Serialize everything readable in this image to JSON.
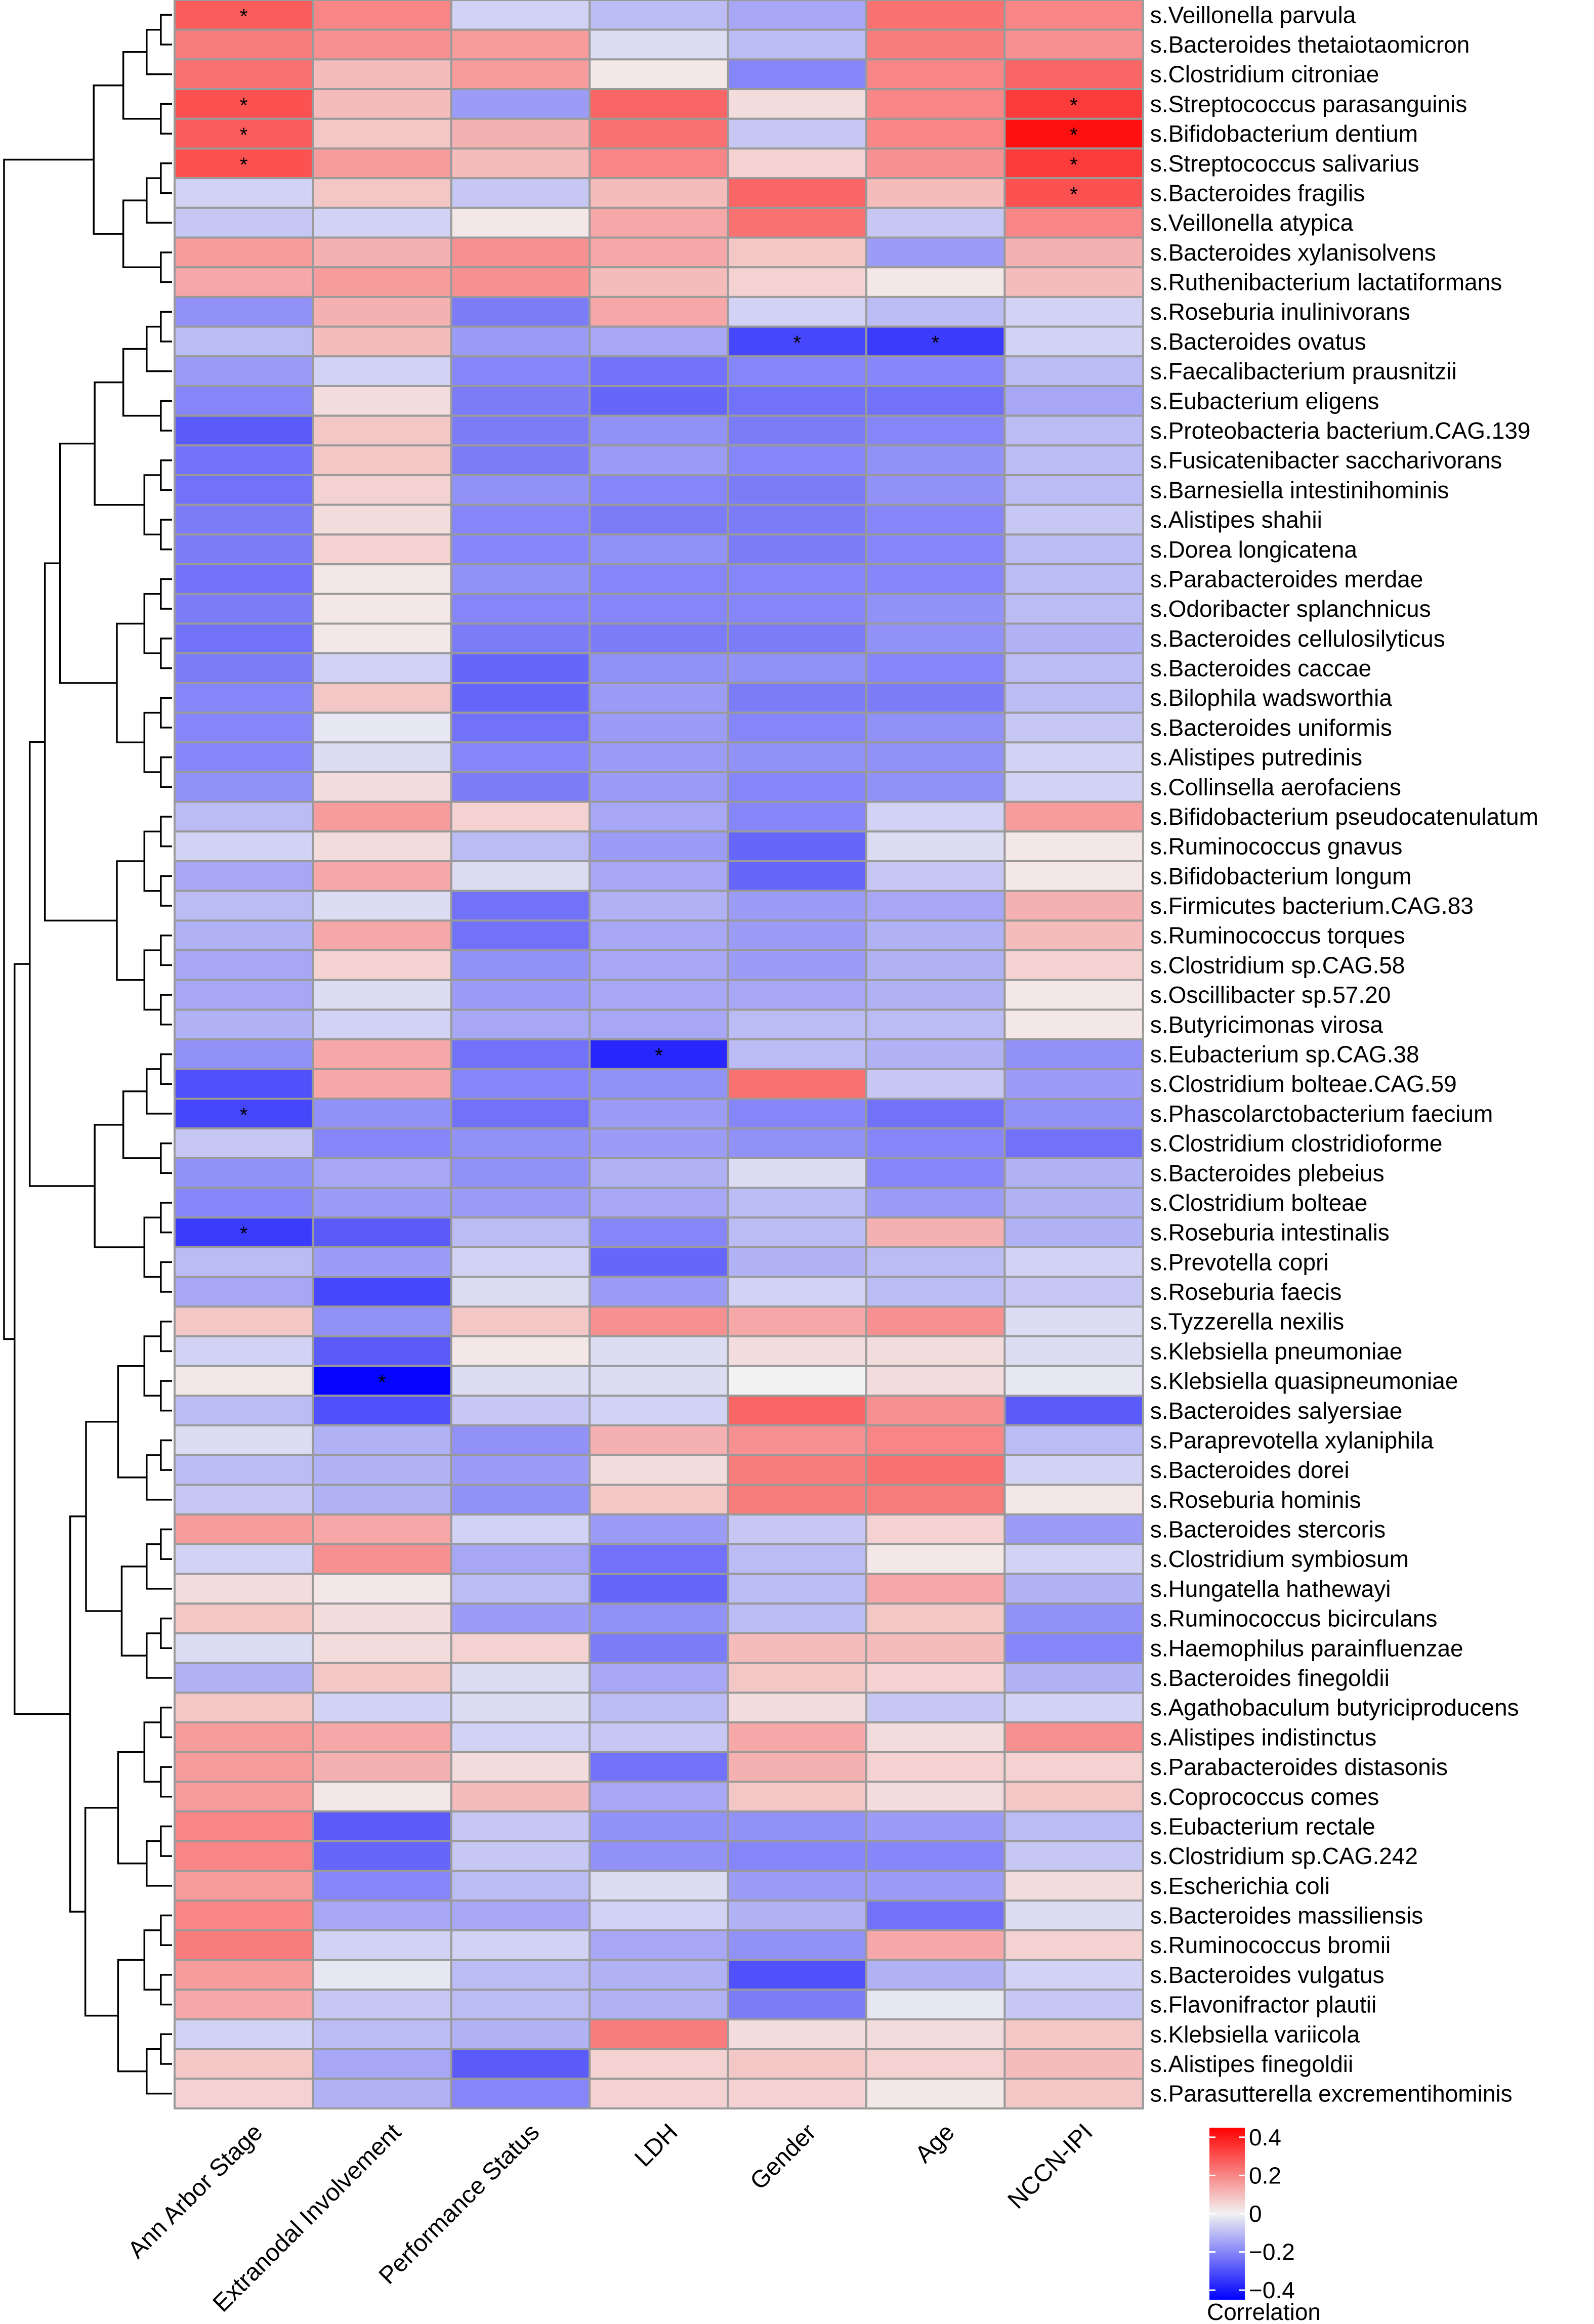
{
  "chart_data": {
    "type": "heatmap",
    "title": "",
    "columns": [
      "Ann Arbor Stage",
      "Extranodal Involvement",
      "Performance Status",
      "LDH",
      "Gender",
      "Age",
      "NCCN-IPI"
    ],
    "rows": [
      "s.Veillonella parvula",
      "s.Bacteroides thetaiotaomicron",
      "s.Clostridium citroniae",
      "s.Streptococcus parasanguinis",
      "s.Bifidobacterium dentium",
      "s.Streptococcus salivarius",
      "s.Bacteroides fragilis",
      "s.Veillonella atypica",
      "s.Bacteroides xylanisolvens",
      "s.Ruthenibacterium lactatiformans",
      "s.Roseburia inulinivorans",
      "s.Bacteroides ovatus",
      "s.Faecalibacterium prausnitzii",
      "s.Eubacterium eligens",
      "s.Proteobacteria bacterium.CAG.139",
      "s.Fusicatenibacter saccharivorans",
      "s.Barnesiella intestinihominis",
      "s.Alistipes shahii",
      "s.Dorea longicatena",
      "s.Parabacteroides merdae",
      "s.Odoribacter splanchnicus",
      "s.Bacteroides cellulosilyticus",
      "s.Bacteroides caccae",
      "s.Bilophila wadsworthia",
      "s.Bacteroides uniformis",
      "s.Alistipes putredinis",
      "s.Collinsella aerofaciens",
      "s.Bifidobacterium pseudocatenulatum",
      "s.Ruminococcus gnavus",
      "s.Bifidobacterium longum",
      "s.Firmicutes bacterium.CAG.83",
      "s.Ruminococcus torques",
      "s.Clostridium sp.CAG.58",
      "s.Oscillibacter sp.57.20",
      "s.Butyricimonas virosa",
      "s.Eubacterium sp.CAG.38",
      "s.Clostridium bolteae.CAG.59",
      "s.Phascolarctobacterium faecium",
      "s.Clostridium clostridioforme",
      "s.Bacteroides plebeius",
      "s.Clostridium bolteae",
      "s.Roseburia intestinalis",
      "s.Prevotella copri",
      "s.Roseburia faecis",
      "s.Tyzzerella nexilis",
      "s.Klebsiella pneumoniae",
      "s.Klebsiella quasipneumoniae",
      "s.Bacteroides salyersiae",
      "s.Paraprevotella xylaniphila",
      "s.Bacteroides dorei",
      "s.Roseburia hominis",
      "s.Bacteroides stercoris",
      "s.Clostridium symbiosum",
      "s.Hungatella hathewayi",
      "s.Ruminococcus bicirculans",
      "s.Haemophilus parainfluenzae",
      "s.Bacteroides finegoldii",
      "s.Agathobaculum butyriciproducens",
      "s.Alistipes indistinctus",
      "s.Parabacteroides distasonis",
      "s.Coprococcus comes",
      "s.Eubacterium rectale",
      "s.Clostridium sp.CAG.242",
      "s.Escherichia coli",
      "s.Bacteroides massiliensis",
      "s.Ruminococcus bromii",
      "s.Bacteroides vulgatus",
      "s.Flavonifractor plautii",
      "s.Klebsiella variicola",
      "s.Alistipes finegoldii",
      "s.Parasutterella excrementihominis"
    ],
    "values": [
      [
        0.28,
        0.2,
        -0.06,
        -0.1,
        -0.14,
        0.24,
        0.2
      ],
      [
        0.22,
        0.18,
        0.16,
        -0.04,
        -0.1,
        0.22,
        0.18
      ],
      [
        0.24,
        0.1,
        0.16,
        0.02,
        -0.2,
        0.2,
        0.26
      ],
      [
        0.3,
        0.1,
        -0.16,
        0.26,
        0.04,
        0.2,
        0.34
      ],
      [
        0.28,
        0.08,
        0.12,
        0.24,
        -0.08,
        0.2,
        0.42
      ],
      [
        0.3,
        0.16,
        0.1,
        0.2,
        0.06,
        0.18,
        0.34
      ],
      [
        -0.06,
        0.08,
        -0.08,
        0.1,
        0.26,
        0.1,
        0.3
      ],
      [
        -0.08,
        -0.06,
        0.02,
        0.14,
        0.24,
        -0.08,
        0.2
      ],
      [
        0.16,
        0.12,
        0.18,
        0.14,
        0.08,
        -0.16,
        0.12
      ],
      [
        0.14,
        0.16,
        0.18,
        0.1,
        0.06,
        0.02,
        0.1
      ],
      [
        -0.18,
        0.12,
        -0.22,
        0.14,
        -0.06,
        -0.1,
        -0.06
      ],
      [
        -0.1,
        0.1,
        -0.16,
        -0.14,
        -0.32,
        -0.34,
        -0.06
      ],
      [
        -0.16,
        -0.06,
        -0.2,
        -0.24,
        -0.2,
        -0.2,
        -0.1
      ],
      [
        -0.2,
        0.04,
        -0.22,
        -0.26,
        -0.24,
        -0.24,
        -0.14
      ],
      [
        -0.28,
        0.08,
        -0.22,
        -0.18,
        -0.22,
        -0.2,
        -0.1
      ],
      [
        -0.24,
        0.08,
        -0.22,
        -0.16,
        -0.2,
        -0.18,
        -0.1
      ],
      [
        -0.24,
        0.06,
        -0.18,
        -0.2,
        -0.22,
        -0.18,
        -0.1
      ],
      [
        -0.22,
        0.04,
        -0.2,
        -0.22,
        -0.22,
        -0.2,
        -0.08
      ],
      [
        -0.22,
        0.06,
        -0.2,
        -0.18,
        -0.22,
        -0.2,
        -0.1
      ],
      [
        -0.24,
        0.02,
        -0.18,
        -0.2,
        -0.2,
        -0.2,
        -0.1
      ],
      [
        -0.22,
        0.02,
        -0.2,
        -0.2,
        -0.2,
        -0.18,
        -0.1
      ],
      [
        -0.24,
        0.02,
        -0.22,
        -0.22,
        -0.22,
        -0.18,
        -0.12
      ],
      [
        -0.22,
        -0.06,
        -0.26,
        -0.18,
        -0.18,
        -0.2,
        -0.1
      ],
      [
        -0.2,
        0.08,
        -0.26,
        -0.16,
        -0.22,
        -0.22,
        -0.1
      ],
      [
        -0.2,
        -0.02,
        -0.24,
        -0.16,
        -0.2,
        -0.18,
        -0.08
      ],
      [
        -0.2,
        -0.04,
        -0.2,
        -0.16,
        -0.18,
        -0.18,
        -0.06
      ],
      [
        -0.18,
        0.04,
        -0.22,
        -0.16,
        -0.2,
        -0.18,
        -0.06
      ],
      [
        -0.1,
        0.16,
        0.06,
        -0.14,
        -0.2,
        -0.06,
        0.16
      ],
      [
        -0.06,
        0.04,
        -0.1,
        -0.16,
        -0.26,
        -0.04,
        0.02
      ],
      [
        -0.14,
        0.14,
        -0.04,
        -0.14,
        -0.26,
        -0.08,
        0.02
      ],
      [
        -0.1,
        -0.04,
        -0.24,
        -0.12,
        -0.16,
        -0.14,
        0.12
      ],
      [
        -0.12,
        0.14,
        -0.24,
        -0.14,
        -0.16,
        -0.12,
        0.1
      ],
      [
        -0.14,
        0.06,
        -0.18,
        -0.14,
        -0.16,
        -0.12,
        0.06
      ],
      [
        -0.14,
        -0.04,
        -0.16,
        -0.14,
        -0.14,
        -0.12,
        0.02
      ],
      [
        -0.12,
        -0.06,
        -0.14,
        -0.14,
        -0.1,
        -0.1,
        0.02
      ],
      [
        -0.18,
        0.14,
        -0.24,
        -0.38,
        -0.1,
        -0.12,
        -0.18
      ],
      [
        -0.3,
        0.14,
        -0.2,
        -0.18,
        0.24,
        -0.08,
        -0.16
      ],
      [
        -0.32,
        -0.18,
        -0.24,
        -0.16,
        -0.2,
        -0.24,
        -0.18
      ],
      [
        -0.08,
        -0.2,
        -0.18,
        -0.16,
        -0.18,
        -0.2,
        -0.24
      ],
      [
        -0.18,
        -0.14,
        -0.18,
        -0.12,
        -0.04,
        -0.2,
        -0.12
      ],
      [
        -0.2,
        -0.16,
        -0.16,
        -0.14,
        -0.1,
        -0.16,
        -0.12
      ],
      [
        -0.34,
        -0.28,
        -0.1,
        -0.2,
        -0.1,
        0.12,
        -0.12
      ],
      [
        -0.1,
        -0.16,
        -0.06,
        -0.26,
        -0.12,
        -0.1,
        -0.06
      ],
      [
        -0.14,
        -0.32,
        -0.04,
        -0.16,
        -0.06,
        -0.1,
        -0.08
      ],
      [
        0.08,
        -0.18,
        0.08,
        0.18,
        0.14,
        0.18,
        -0.04
      ],
      [
        -0.06,
        -0.28,
        0.02,
        -0.04,
        0.04,
        0.04,
        -0.04
      ],
      [
        0.02,
        -0.44,
        -0.04,
        -0.04,
        0.0,
        0.04,
        -0.02
      ],
      [
        -0.1,
        -0.3,
        -0.08,
        -0.06,
        0.26,
        0.18,
        -0.28
      ],
      [
        -0.04,
        -0.12,
        -0.18,
        0.12,
        0.18,
        0.2,
        -0.1
      ],
      [
        -0.1,
        -0.12,
        -0.16,
        0.04,
        0.22,
        0.24,
        -0.06
      ],
      [
        -0.08,
        -0.12,
        -0.18,
        0.08,
        0.22,
        0.22,
        0.02
      ],
      [
        0.16,
        0.14,
        -0.06,
        -0.16,
        -0.08,
        0.06,
        -0.16
      ],
      [
        -0.06,
        0.18,
        -0.14,
        -0.24,
        -0.1,
        0.02,
        -0.06
      ],
      [
        0.04,
        0.02,
        -0.1,
        -0.26,
        -0.1,
        0.14,
        -0.12
      ],
      [
        0.08,
        0.04,
        -0.16,
        -0.18,
        -0.1,
        0.08,
        -0.18
      ],
      [
        -0.04,
        0.04,
        0.06,
        -0.22,
        0.1,
        0.1,
        -0.2
      ],
      [
        -0.12,
        0.08,
        -0.04,
        -0.14,
        0.08,
        0.06,
        -0.12
      ],
      [
        0.08,
        -0.06,
        -0.04,
        -0.1,
        0.04,
        -0.08,
        -0.06
      ],
      [
        0.16,
        0.14,
        -0.06,
        -0.08,
        0.14,
        0.04,
        0.18
      ],
      [
        0.16,
        0.12,
        0.04,
        -0.24,
        0.12,
        0.06,
        0.06
      ],
      [
        0.16,
        0.02,
        0.1,
        -0.14,
        0.08,
        0.04,
        0.08
      ],
      [
        0.2,
        -0.28,
        -0.08,
        -0.18,
        -0.18,
        -0.16,
        -0.1
      ],
      [
        0.2,
        -0.26,
        -0.08,
        -0.18,
        -0.2,
        -0.2,
        -0.08
      ],
      [
        0.16,
        -0.2,
        -0.1,
        -0.04,
        -0.16,
        -0.16,
        0.04
      ],
      [
        0.2,
        -0.14,
        -0.14,
        -0.06,
        -0.12,
        -0.24,
        -0.04
      ],
      [
        0.22,
        -0.06,
        -0.06,
        -0.14,
        -0.18,
        0.14,
        0.06
      ],
      [
        0.16,
        -0.02,
        -0.1,
        -0.12,
        -0.3,
        -0.12,
        -0.06
      ],
      [
        0.14,
        -0.08,
        -0.1,
        -0.12,
        -0.22,
        -0.02,
        -0.08
      ],
      [
        -0.06,
        -0.1,
        -0.12,
        0.22,
        0.04,
        0.04,
        0.08
      ],
      [
        0.08,
        -0.14,
        -0.28,
        0.06,
        0.08,
        0.06,
        0.1
      ],
      [
        0.06,
        -0.12,
        -0.2,
        0.06,
        0.06,
        0.02,
        0.08
      ]
    ],
    "significance": [
      {
        "row": 0,
        "col": 0,
        "mark": "*"
      },
      {
        "row": 3,
        "col": 0,
        "mark": "*"
      },
      {
        "row": 4,
        "col": 0,
        "mark": "*"
      },
      {
        "row": 5,
        "col": 0,
        "mark": "*"
      },
      {
        "row": 3,
        "col": 6,
        "mark": "*"
      },
      {
        "row": 4,
        "col": 6,
        "mark": "*"
      },
      {
        "row": 5,
        "col": 6,
        "mark": "*"
      },
      {
        "row": 6,
        "col": 6,
        "mark": "*"
      },
      {
        "row": 11,
        "col": 4,
        "mark": "*"
      },
      {
        "row": 11,
        "col": 5,
        "mark": "*"
      },
      {
        "row": 35,
        "col": 3,
        "mark": "*"
      },
      {
        "row": 37,
        "col": 0,
        "mark": "*"
      },
      {
        "row": 41,
        "col": 0,
        "mark": "*"
      },
      {
        "row": 46,
        "col": 1,
        "mark": "*"
      }
    ],
    "color_scale": {
      "min": -0.45,
      "max": 0.45,
      "low_color": "#0000ff",
      "mid_color": "#f2f2f2",
      "high_color": "#ff0000",
      "ticks": [
        "0.4",
        "0.2",
        "0",
        "−0.2",
        "−0.4"
      ],
      "tick_values": [
        0.4,
        0.2,
        0,
        -0.2,
        -0.4
      ],
      "title": "Correlation"
    },
    "dendrogram": "row clustering tree on the left"
  }
}
